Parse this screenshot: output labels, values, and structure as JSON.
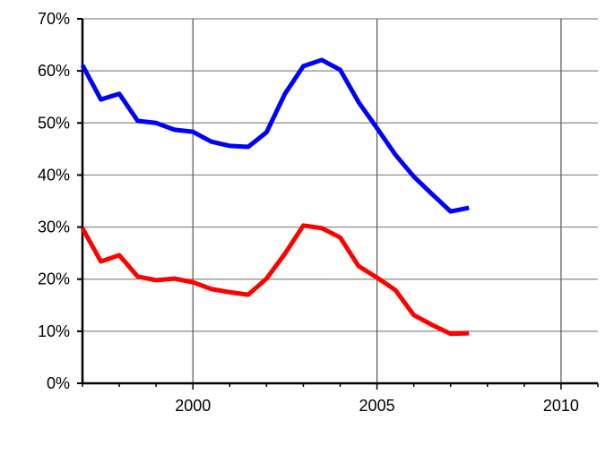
{
  "chart_data": {
    "type": "line",
    "title": "",
    "xlabel": "",
    "ylabel": "",
    "xlim": [
      1997,
      2011
    ],
    "ylim": [
      0,
      70
    ],
    "grid": true,
    "x_ticks": [
      2000,
      2005,
      2010
    ],
    "x_tick_labels": [
      "2000",
      "2005",
      "2010"
    ],
    "y_ticks": [
      0,
      10,
      20,
      30,
      40,
      50,
      60,
      70
    ],
    "y_tick_labels": [
      "0%",
      "10%",
      "20%",
      "30%",
      "40%",
      "50%",
      "60%",
      "70%"
    ],
    "x": [
      1997,
      1997.5,
      1998,
      1998.5,
      1999,
      1999.5,
      2000,
      2000.5,
      2001,
      2001.5,
      2002,
      2002.5,
      2003,
      2003.5,
      2004,
      2004.5,
      2005,
      2005.5,
      2006,
      2006.5,
      2007,
      2007.5
    ],
    "series": [
      {
        "color": "#0000ff",
        "values": [
          61.1,
          54.5,
          55.6,
          50.4,
          50.0,
          48.7,
          48.3,
          46.4,
          45.6,
          45.4,
          48.2,
          55.6,
          60.9,
          62.1,
          60.2,
          54.0,
          49.0,
          43.9,
          39.7,
          36.3,
          33.0,
          33.7
        ]
      },
      {
        "color": "#ff0000",
        "values": [
          29.8,
          23.4,
          24.6,
          20.5,
          19.8,
          20.1,
          19.4,
          18.1,
          17.5,
          17.0,
          20.1,
          24.9,
          30.3,
          29.8,
          28.0,
          22.5,
          20.3,
          17.9,
          13.1,
          11.2,
          9.5,
          9.6
        ]
      }
    ]
  }
}
